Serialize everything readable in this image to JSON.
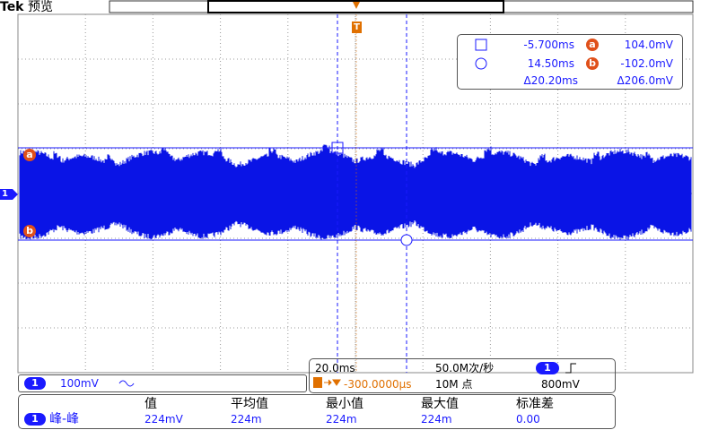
{
  "header": {
    "brand": "Tek",
    "mode": "预览"
  },
  "markers": {
    "trigger": "T",
    "channel": "1",
    "cursor_a": "a",
    "cursor_b": "b"
  },
  "cursors": {
    "a_time": "-5.700ms",
    "a_label": "a",
    "a_value": "104.0mV",
    "b_time": "14.50ms",
    "b_label": "b",
    "b_value": "-102.0mV",
    "delta_time": "Δ20.20ms",
    "delta_value": "Δ206.0mV"
  },
  "channel": {
    "number": "1",
    "scale": "100mV"
  },
  "timebase": {
    "scale": "20.0ms",
    "sample_rate": "50.0M次/秒",
    "trigger_source": "1",
    "position": "-300.0000µs",
    "record_length": "10M 点",
    "trigger_level": "800mV"
  },
  "measurements": {
    "headers": [
      "值",
      "平均值",
      "最小值",
      "最大值",
      "标准差"
    ],
    "rows": [
      [
        "1",
        "峰-峰",
        "224mV",
        "224m",
        "224m",
        "224m",
        "0.00"
      ]
    ]
  }
}
